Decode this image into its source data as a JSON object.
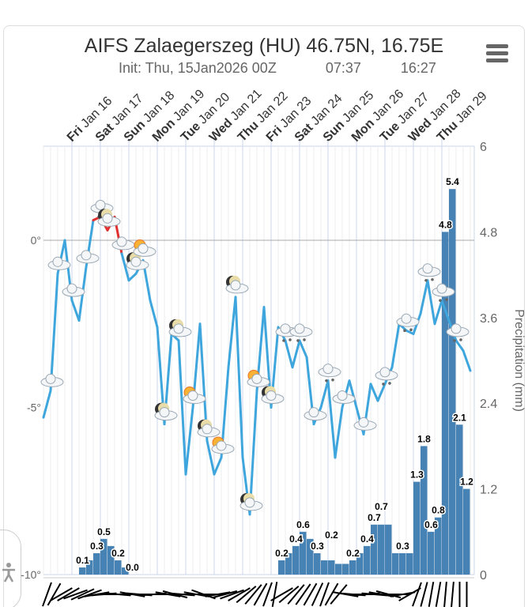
{
  "header": {
    "title": "AIFS Zalaegerszeg (HU) 46.75N, 16.75E",
    "init": "Init: Thu, 15Jan2026 00Z",
    "sunrise": "07:37",
    "sunset": "16:27",
    "menu_icon": "hamburger-icon"
  },
  "chart_data": {
    "type": "line+bar",
    "title": "AIFS Zalaegerszeg (HU) 46.75N, 16.75E",
    "subtitle": "Init: Thu, 15Jan2026 00Z",
    "x_start": "2026-01-15T00Z",
    "step_hours": 6,
    "day_labels": [
      [
        "Fri",
        "Jan 16"
      ],
      [
        "Sat",
        "Jan 17"
      ],
      [
        "Sun",
        "Jan 18"
      ],
      [
        "Mon",
        "Jan 19"
      ],
      [
        "Tue",
        "Jan 20"
      ],
      [
        "Wed",
        "Jan 21"
      ],
      [
        "Thu",
        "Jan 22"
      ],
      [
        "Fri",
        "Jan 23"
      ],
      [
        "Sat",
        "Jan 24"
      ],
      [
        "Sun",
        "Jan 25"
      ],
      [
        "Mon",
        "Jan 26"
      ],
      [
        "Tue",
        "Jan 27"
      ],
      [
        "Wed",
        "Jan 28"
      ],
      [
        "Thu",
        "Jan 29"
      ]
    ],
    "left_axis": {
      "ticks": [
        "0°",
        "-5°",
        "-10°"
      ],
      "values": [
        0,
        -5,
        -10
      ],
      "range": [
        -10,
        2.8
      ]
    },
    "right_axis": {
      "label": "Precipitation (mm)",
      "ticks": [
        "6",
        "4.8",
        "3.6",
        "2.4",
        "1.2",
        "0"
      ],
      "values": [
        6,
        4.8,
        3.6,
        2.4,
        1.2,
        0
      ],
      "range": [
        0,
        6
      ]
    },
    "temperature": [
      -5.3,
      -4.5,
      -1.0,
      0.0,
      -1.8,
      -2.4,
      -0.8,
      0.6,
      0.7,
      0.3,
      0.7,
      -0.4,
      -1.2,
      -1.0,
      -0.6,
      -1.8,
      -2.6,
      -5.5,
      -2.8,
      -3.0,
      -7.0,
      -5.0,
      -2.5,
      -6.0,
      -7.0,
      -6.5,
      -3.8,
      -1.7,
      -6.5,
      -8.2,
      -4.5,
      -2.0,
      -5.0,
      -2.6,
      -3.0,
      -3.8,
      -3.0,
      -3.5,
      -5.5,
      -5.0,
      -4.2,
      -6.5,
      -5.0,
      -4.2,
      -5.0,
      -5.8,
      -4.3,
      -4.8,
      -4.3,
      -3.8,
      -2.5,
      -2.7,
      -2.8,
      -2.2,
      -1.2,
      -2.5,
      -1.8,
      -2.4,
      -3.0,
      -3.3,
      -3.9
    ],
    "temp_colors": {
      "below_zero": "#3ea6dd",
      "above_zero": "#e03030"
    },
    "precipitation": [
      0,
      0,
      0,
      0,
      0,
      0.1,
      0.2,
      0.3,
      0.5,
      0.4,
      0.2,
      0.1,
      0.0,
      0,
      0,
      0,
      0,
      0,
      0,
      0,
      0,
      0,
      0,
      0,
      0,
      0,
      0,
      0,
      0,
      0,
      0,
      0,
      0,
      0.2,
      0.3,
      0.4,
      0.6,
      0.5,
      0.3,
      0.2,
      0.2,
      0.15,
      0.15,
      0.2,
      0.3,
      0.4,
      0.7,
      0.7,
      0.7,
      0.3,
      0.3,
      0.3,
      1.3,
      1.8,
      0.6,
      0.8,
      4.8,
      5.4,
      2.1,
      1.2
    ],
    "precip_labels": {
      "5": "0.1",
      "7": "0.3",
      "8": "0.5",
      "10": "0.2",
      "12": "0.0",
      "33": "0.2",
      "35": "0.4",
      "36": "0.6",
      "38": "0.3",
      "40": "0.2",
      "43": "0.2",
      "45": "0.4",
      "46": "0.7",
      "47": "0.7",
      "50": "0.3",
      "52": "1.3",
      "53": "1.8",
      "54": "0.6",
      "55": "0.8",
      "56": "4.8",
      "57": "5.4",
      "58": "2.1",
      "59": "1.2"
    },
    "bar_color": "#4682b4",
    "symbols": [
      [
        1,
        "cloud"
      ],
      [
        2,
        "cloud"
      ],
      [
        4,
        "cloud"
      ],
      [
        6,
        "cloud"
      ],
      [
        8,
        "snow-cloud"
      ],
      [
        9,
        "moon-cloud"
      ],
      [
        11,
        "cloud"
      ],
      [
        13,
        "moon-cloud"
      ],
      [
        14,
        "sun-cloud"
      ],
      [
        17,
        "moon-cloud"
      ],
      [
        19,
        "moon-cloud"
      ],
      [
        21,
        "sun-cloud"
      ],
      [
        23,
        "moon-cloud"
      ],
      [
        25,
        "sun-cloud"
      ],
      [
        27,
        "moon-cloud"
      ],
      [
        29,
        "moon-cloud"
      ],
      [
        30,
        "sun-cloud"
      ],
      [
        32,
        "moon-cloud"
      ],
      [
        34,
        "snow-cloud"
      ],
      [
        36,
        "snow-cloud"
      ],
      [
        38,
        "cloud"
      ],
      [
        40,
        "snow-cloud"
      ],
      [
        42,
        "cloud"
      ],
      [
        45,
        "cloud"
      ],
      [
        48,
        "snow-cloud"
      ],
      [
        51,
        "snow-cloud"
      ],
      [
        54,
        "snow-cloud"
      ],
      [
        56,
        "snow-cloud"
      ],
      [
        58,
        "snow-cloud"
      ]
    ],
    "wind_dirs_deg": [
      20,
      30,
      60,
      240,
      250,
      245,
      250,
      260,
      265,
      270,
      275,
      270,
      280,
      275,
      270,
      265,
      270,
      280,
      285,
      275,
      270,
      280,
      290,
      270,
      260,
      255,
      250,
      240,
      230,
      220,
      210,
      200,
      190,
      60,
      50,
      40,
      35,
      30,
      25,
      20,
      30,
      40,
      100,
      95,
      90,
      85,
      95,
      100,
      105,
      90,
      80,
      60,
      20,
      15,
      10,
      10,
      5,
      5,
      0,
      0
    ]
  },
  "accessibility": {
    "icon": "accessibility-icon"
  }
}
